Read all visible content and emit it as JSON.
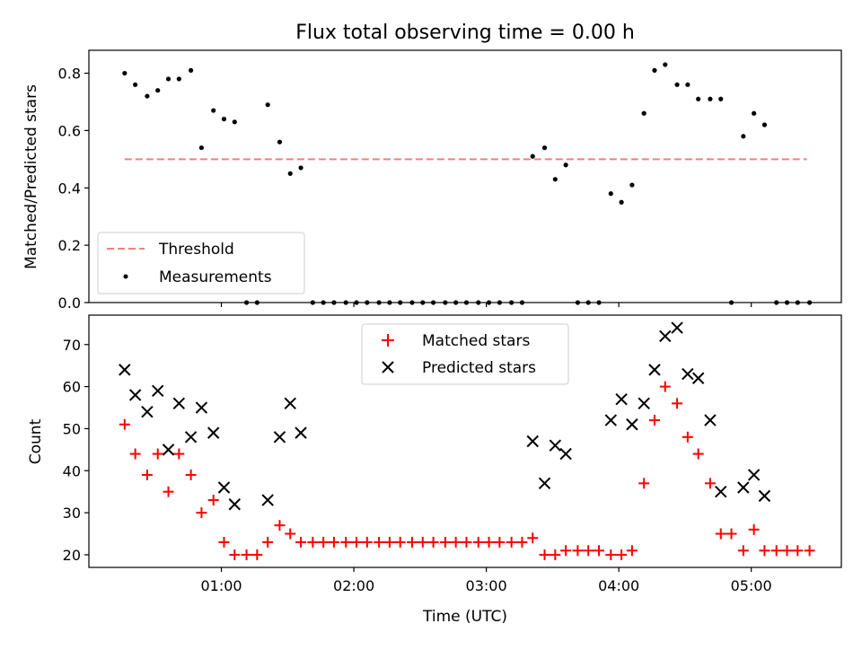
{
  "chart_data": [
    {
      "type": "scatter",
      "title": "Flux total observing time = 0.00 h",
      "xlabel": "",
      "ylabel": "Matched/Predicted stars",
      "xlim": [
        0.0,
        5.68
      ],
      "ylim": [
        0.0,
        0.88
      ],
      "yticks": [
        0.0,
        0.2,
        0.4,
        0.6,
        0.8
      ],
      "ytick_labels": [
        "0.0",
        "0.2",
        "0.4",
        "0.6",
        "0.8"
      ],
      "xticks": [
        1,
        2,
        3,
        4,
        5
      ],
      "legend": {
        "position": "lower-left",
        "entries": [
          "Threshold",
          "Measurements"
        ]
      },
      "threshold": {
        "name": "Threshold",
        "value": 0.5,
        "x_range": [
          0.27,
          5.42
        ],
        "color": "#f08080"
      },
      "series": [
        {
          "name": "Measurements",
          "color": "#000000",
          "points": [
            [
              0.27,
              0.8
            ],
            [
              0.35,
              0.76
            ],
            [
              0.44,
              0.72
            ],
            [
              0.52,
              0.74
            ],
            [
              0.6,
              0.78
            ],
            [
              0.68,
              0.78
            ],
            [
              0.77,
              0.81
            ],
            [
              0.85,
              0.54
            ],
            [
              0.94,
              0.67
            ],
            [
              1.02,
              0.64
            ],
            [
              1.1,
              0.63
            ],
            [
              1.19,
              0.0
            ],
            [
              1.27,
              0.0
            ],
            [
              1.35,
              0.69
            ],
            [
              1.44,
              0.56
            ],
            [
              1.52,
              0.45
            ],
            [
              1.6,
              0.47
            ],
            [
              1.69,
              0.0
            ],
            [
              1.77,
              0.0
            ],
            [
              1.85,
              0.0
            ],
            [
              1.94,
              0.0
            ],
            [
              2.02,
              0.0
            ],
            [
              2.1,
              0.0
            ],
            [
              2.19,
              0.0
            ],
            [
              2.27,
              0.0
            ],
            [
              2.35,
              0.0
            ],
            [
              2.44,
              0.0
            ],
            [
              2.52,
              0.0
            ],
            [
              2.6,
              0.0
            ],
            [
              2.69,
              0.0
            ],
            [
              2.77,
              0.0
            ],
            [
              2.85,
              0.0
            ],
            [
              2.94,
              0.0
            ],
            [
              3.02,
              0.0
            ],
            [
              3.1,
              0.0
            ],
            [
              3.19,
              0.0
            ],
            [
              3.27,
              0.0
            ],
            [
              3.35,
              0.51
            ],
            [
              3.44,
              0.54
            ],
            [
              3.52,
              0.43
            ],
            [
              3.6,
              0.48
            ],
            [
              3.69,
              0.0
            ],
            [
              3.77,
              0.0
            ],
            [
              3.85,
              0.0
            ],
            [
              3.94,
              0.38
            ],
            [
              4.02,
              0.35
            ],
            [
              4.1,
              0.41
            ],
            [
              4.19,
              0.66
            ],
            [
              4.27,
              0.81
            ],
            [
              4.35,
              0.83
            ],
            [
              4.44,
              0.76
            ],
            [
              4.52,
              0.76
            ],
            [
              4.6,
              0.71
            ],
            [
              4.69,
              0.71
            ],
            [
              4.77,
              0.71
            ],
            [
              4.85,
              0.0
            ],
            [
              4.94,
              0.58
            ],
            [
              5.02,
              0.66
            ],
            [
              5.1,
              0.62
            ],
            [
              5.19,
              0.0
            ],
            [
              5.27,
              0.0
            ],
            [
              5.35,
              0.0
            ],
            [
              5.44,
              0.0
            ]
          ]
        }
      ]
    },
    {
      "type": "scatter",
      "title": "",
      "xlabel": "Time (UTC)",
      "ylabel": "Count",
      "xlim": [
        0.0,
        5.68
      ],
      "ylim": [
        17.0,
        77.0
      ],
      "yticks": [
        20,
        30,
        40,
        50,
        60,
        70
      ],
      "ytick_labels": [
        "20",
        "30",
        "40",
        "50",
        "60",
        "70"
      ],
      "xticks": [
        1,
        2,
        3,
        4,
        5
      ],
      "xtick_labels": [
        "01:00",
        "02:00",
        "03:00",
        "04:00",
        "05:00"
      ],
      "legend": {
        "position": "upper-center",
        "entries": [
          "Matched stars",
          "Predicted stars"
        ]
      },
      "series": [
        {
          "name": "Matched stars",
          "marker": "plus",
          "color": "#ff0000",
          "points": [
            [
              0.27,
              51
            ],
            [
              0.35,
              44
            ],
            [
              0.44,
              39
            ],
            [
              0.52,
              44
            ],
            [
              0.6,
              35
            ],
            [
              0.68,
              44
            ],
            [
              0.77,
              39
            ],
            [
              0.85,
              30
            ],
            [
              0.94,
              33
            ],
            [
              1.02,
              23
            ],
            [
              1.1,
              20
            ],
            [
              1.19,
              20
            ],
            [
              1.27,
              20
            ],
            [
              1.35,
              23
            ],
            [
              1.44,
              27
            ],
            [
              1.52,
              25
            ],
            [
              1.6,
              23
            ],
            [
              1.69,
              23
            ],
            [
              1.77,
              23
            ],
            [
              1.85,
              23
            ],
            [
              1.94,
              23
            ],
            [
              2.02,
              23
            ],
            [
              2.1,
              23
            ],
            [
              2.19,
              23
            ],
            [
              2.27,
              23
            ],
            [
              2.35,
              23
            ],
            [
              2.44,
              23
            ],
            [
              2.52,
              23
            ],
            [
              2.6,
              23
            ],
            [
              2.69,
              23
            ],
            [
              2.77,
              23
            ],
            [
              2.85,
              23
            ],
            [
              2.94,
              23
            ],
            [
              3.02,
              23
            ],
            [
              3.1,
              23
            ],
            [
              3.19,
              23
            ],
            [
              3.27,
              23
            ],
            [
              3.35,
              24
            ],
            [
              3.44,
              20
            ],
            [
              3.52,
              20
            ],
            [
              3.6,
              21
            ],
            [
              3.69,
              21
            ],
            [
              3.77,
              21
            ],
            [
              3.85,
              21
            ],
            [
              3.94,
              20
            ],
            [
              4.02,
              20
            ],
            [
              4.1,
              21
            ],
            [
              4.19,
              37
            ],
            [
              4.27,
              52
            ],
            [
              4.35,
              60
            ],
            [
              4.44,
              56
            ],
            [
              4.52,
              48
            ],
            [
              4.6,
              44
            ],
            [
              4.69,
              37
            ],
            [
              4.77,
              25
            ],
            [
              4.85,
              25
            ],
            [
              4.94,
              21
            ],
            [
              5.02,
              26
            ],
            [
              5.1,
              21
            ],
            [
              5.19,
              21
            ],
            [
              5.27,
              21
            ],
            [
              5.35,
              21
            ],
            [
              5.44,
              21
            ]
          ]
        },
        {
          "name": "Predicted stars",
          "marker": "x",
          "color": "#000000",
          "points": [
            [
              0.27,
              64
            ],
            [
              0.35,
              58
            ],
            [
              0.44,
              54
            ],
            [
              0.52,
              59
            ],
            [
              0.6,
              45
            ],
            [
              0.68,
              56
            ],
            [
              0.77,
              48
            ],
            [
              0.85,
              55
            ],
            [
              0.94,
              49
            ],
            [
              1.02,
              36
            ],
            [
              1.1,
              32
            ],
            [
              1.35,
              33
            ],
            [
              1.44,
              48
            ],
            [
              1.52,
              56
            ],
            [
              1.6,
              49
            ],
            [
              3.35,
              47
            ],
            [
              3.44,
              37
            ],
            [
              3.52,
              46
            ],
            [
              3.6,
              44
            ],
            [
              3.94,
              52
            ],
            [
              4.02,
              57
            ],
            [
              4.1,
              51
            ],
            [
              4.19,
              56
            ],
            [
              4.27,
              64
            ],
            [
              4.35,
              72
            ],
            [
              4.44,
              74
            ],
            [
              4.52,
              63
            ],
            [
              4.6,
              62
            ],
            [
              4.69,
              52
            ],
            [
              4.77,
              35
            ],
            [
              4.94,
              36
            ],
            [
              5.02,
              39
            ],
            [
              5.1,
              34
            ]
          ]
        }
      ]
    }
  ]
}
